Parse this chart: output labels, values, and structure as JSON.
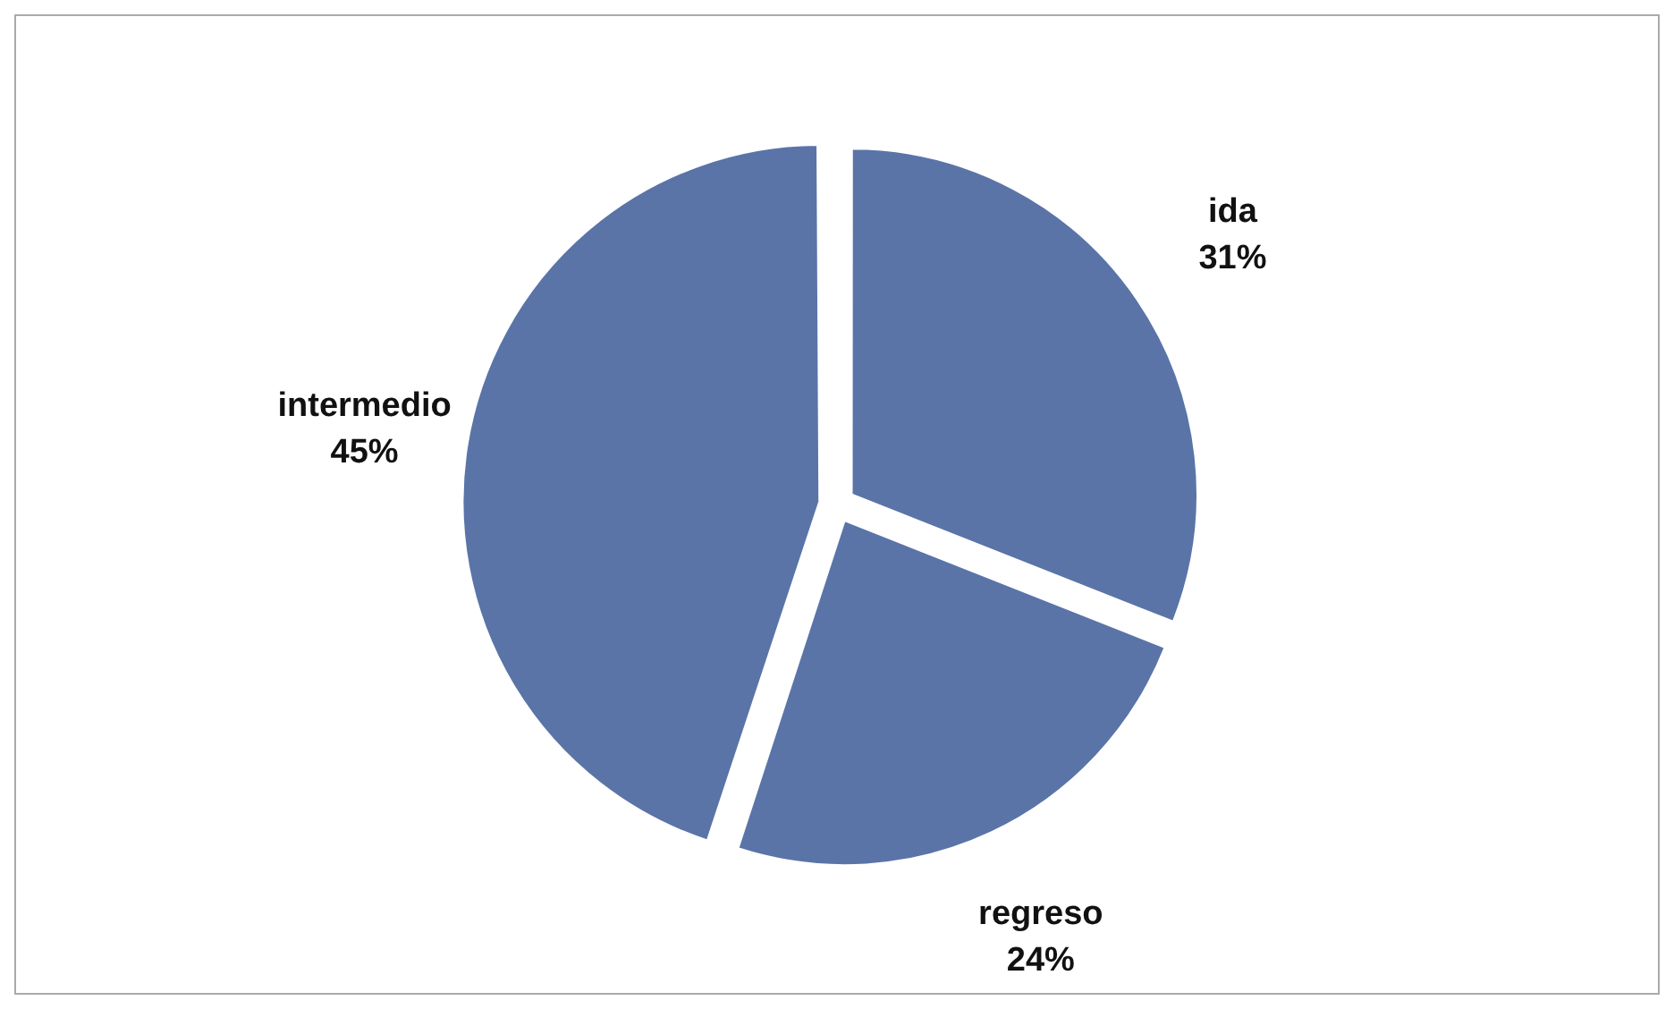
{
  "chart_data": {
    "type": "pie",
    "categories": [
      "ida",
      "regreso",
      "intermedio"
    ],
    "values": [
      31,
      24,
      45
    ],
    "colors": [
      "#5a74a8",
      "#5a74a8",
      "#5a74a8"
    ],
    "value_labels": [
      "31%",
      "24%",
      "45%"
    ]
  }
}
